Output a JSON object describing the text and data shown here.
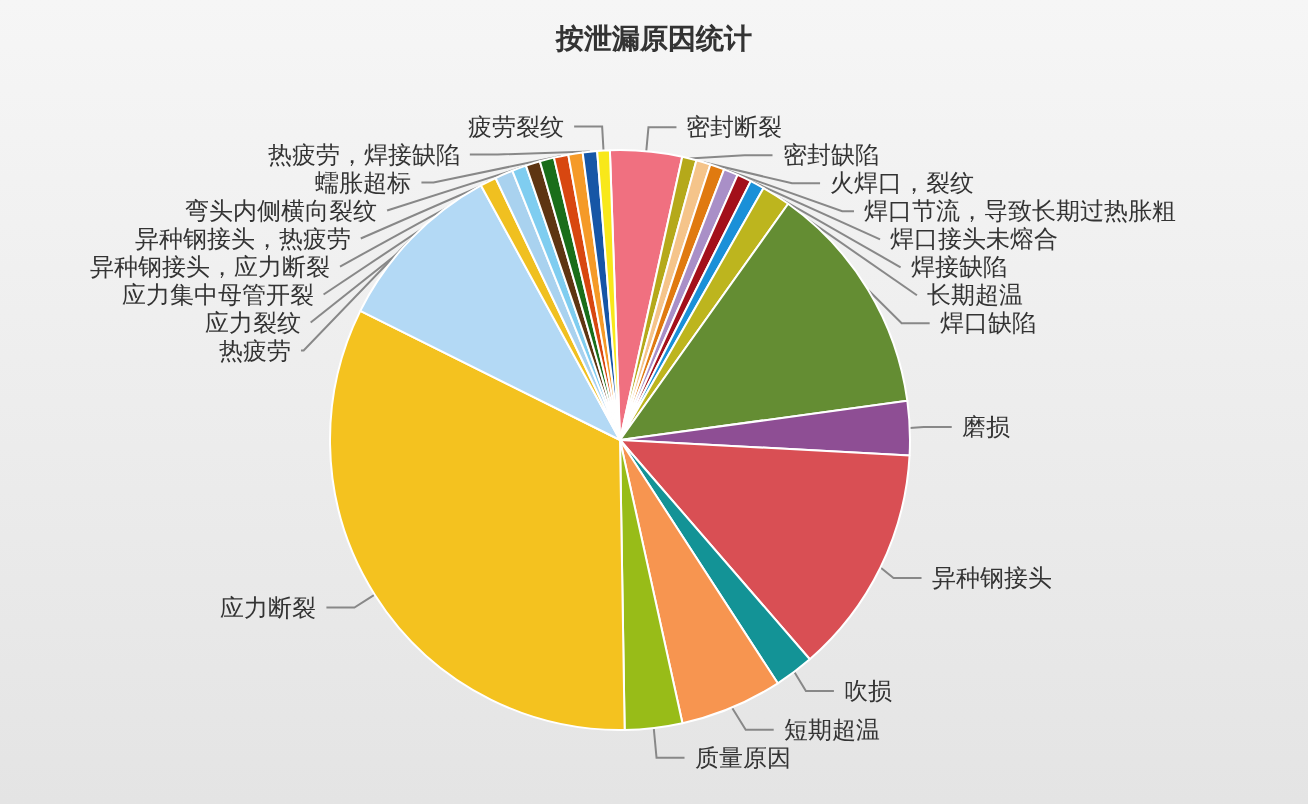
{
  "chart_data": {
    "type": "pie",
    "title": "按泄漏原因统计",
    "legend": false,
    "categories": [
      "密封断裂",
      "密封缺陷",
      "火焊口，裂纹",
      "焊口节流，导致长期过热胀粗",
      "焊口接头未熔合",
      "焊接缺陷",
      "长期超温",
      null,
      "焊口缺陷",
      "磨损",
      "异种钢接头",
      "吹损",
      "短期超温",
      "质量原因",
      "应力断裂",
      "热疲劳",
      "应力裂纹",
      "应力集中母管开裂",
      "异种钢接头，应力断裂",
      "异种钢接头，热疲劳",
      "弯头内侧横向裂纹",
      "蠕胀超标",
      null,
      "热疲劳，焊接缺陷",
      "疲劳裂纹"
    ],
    "values": [
      4,
      0.8,
      0.8,
      0.8,
      0.8,
      0.8,
      0.8,
      1.6,
      13,
      3,
      12.8,
      2.2,
      5.7,
      3.2,
      32.6,
      9.7,
      0.9,
      1,
      0.8,
      0.8,
      0.8,
      0.8,
      0.8,
      0.8,
      0.7
    ],
    "colors": [
      "#f07080",
      "#b5a91a",
      "#f5c48a",
      "#e07a10",
      "#a98fc7",
      "#a3101a",
      "#1a90d8",
      "#bdb51e",
      "#648d33",
      "#8e4e94",
      "#d94f54",
      "#139396",
      "#f79550",
      "#98bc18",
      "#f4c21f",
      "#b3d9f5",
      "#f0c020",
      "#a9d2ef",
      "#7fcdf0",
      "#5e3512",
      "#1a6e1a",
      "#d84710",
      "#f59a28",
      "#1656a6",
      "#f8e81a"
    ]
  }
}
